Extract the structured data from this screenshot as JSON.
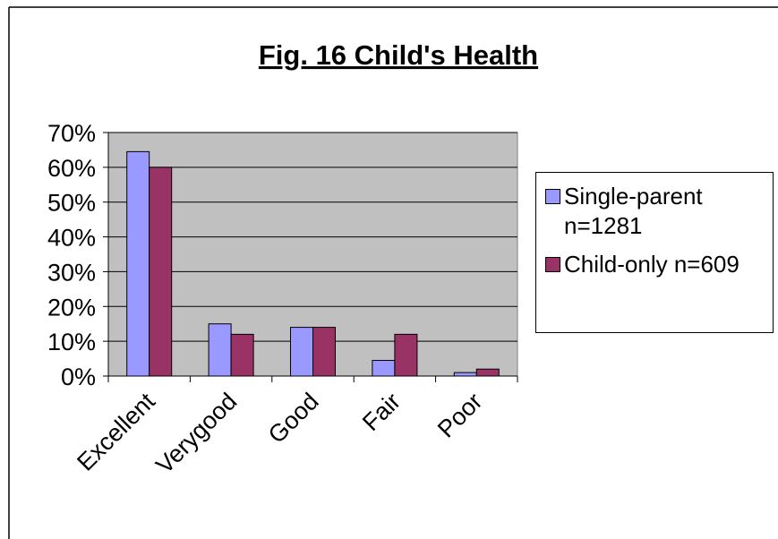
{
  "chart_data": {
    "type": "bar",
    "title": "Fig. 16 Child's Health",
    "categories": [
      "Excellent",
      "Verygood",
      "Good",
      "Fair",
      "Poor"
    ],
    "series": [
      {
        "name": "Single-parent n=1281",
        "color": "#9999ff",
        "values": [
          64.5,
          15,
          14,
          4.5,
          1
        ]
      },
      {
        "name": "Child-only n=609",
        "color": "#993366",
        "values": [
          60,
          12,
          14,
          12,
          2
        ]
      }
    ],
    "ylim": [
      0,
      70
    ],
    "yticks": [
      {
        "value": 0,
        "label": "0%"
      },
      {
        "value": 10,
        "label": "10%"
      },
      {
        "value": 20,
        "label": "20%"
      },
      {
        "value": 30,
        "label": "30%"
      },
      {
        "value": 40,
        "label": "40%"
      },
      {
        "value": 50,
        "label": "50%"
      },
      {
        "value": 60,
        "label": "60%"
      },
      {
        "value": 70,
        "label": "70%"
      }
    ],
    "grid": true,
    "legend": "right"
  }
}
